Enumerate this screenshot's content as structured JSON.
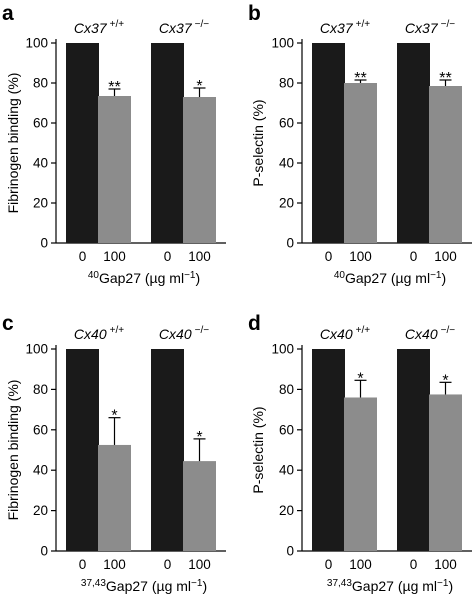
{
  "colors": {
    "control": "#1a1a1a",
    "treated": "#8c8c8c",
    "axis": "#000000"
  },
  "chart_data": [
    {
      "panel": "a",
      "type": "bar",
      "ylabel": "Fibrinogen binding (%)",
      "xlabel_prefix": "40",
      "xlabel_main": "Gap27 (µg ml",
      "xlabel_exp": "−1",
      "xlabel_close": ")",
      "ylim": [
        0,
        100
      ],
      "yticks": [
        0,
        20,
        40,
        60,
        80,
        100
      ],
      "groups": [
        {
          "genotype": "Cx37",
          "genotype_sup": "+/+",
          "categories": [
            "0",
            "100"
          ],
          "values": [
            100,
            73.5
          ],
          "errors": [
            0,
            3.5
          ],
          "significance": [
            "",
            "**"
          ]
        },
        {
          "genotype": "Cx37",
          "genotype_sup": "−/−",
          "categories": [
            "0",
            "100"
          ],
          "values": [
            100,
            73
          ],
          "errors": [
            0,
            4.5
          ],
          "significance": [
            "",
            "*"
          ]
        }
      ]
    },
    {
      "panel": "b",
      "type": "bar",
      "ylabel": "P-selectin (%)",
      "xlabel_prefix": "40",
      "xlabel_main": "Gap27 (µg ml",
      "xlabel_exp": "−1",
      "xlabel_close": ")",
      "ylim": [
        0,
        100
      ],
      "yticks": [
        0,
        20,
        40,
        60,
        80,
        100
      ],
      "groups": [
        {
          "genotype": "Cx37",
          "genotype_sup": "+/+",
          "categories": [
            "0",
            "100"
          ],
          "values": [
            100,
            80
          ],
          "errors": [
            0,
            1.5
          ],
          "significance": [
            "",
            "**"
          ]
        },
        {
          "genotype": "Cx37",
          "genotype_sup": "−/−",
          "categories": [
            "0",
            "100"
          ],
          "values": [
            100,
            78.5
          ],
          "errors": [
            0,
            3
          ],
          "significance": [
            "",
            "**"
          ]
        }
      ]
    },
    {
      "panel": "c",
      "type": "bar",
      "ylabel": "Fibrinogen binding (%)",
      "xlabel_prefix": "37,43",
      "xlabel_main": "Gap27 (µg ml",
      "xlabel_exp": "−1",
      "xlabel_close": ")",
      "ylim": [
        0,
        100
      ],
      "yticks": [
        0,
        20,
        40,
        60,
        80,
        100
      ],
      "groups": [
        {
          "genotype": "Cx40",
          "genotype_sup": "+/+",
          "categories": [
            "0",
            "100"
          ],
          "values": [
            100,
            52.5
          ],
          "errors": [
            0,
            13.5
          ],
          "significance": [
            "",
            "*"
          ]
        },
        {
          "genotype": "Cx40",
          "genotype_sup": "−/−",
          "categories": [
            "0",
            "100"
          ],
          "values": [
            100,
            44.5
          ],
          "errors": [
            0,
            11
          ],
          "significance": [
            "",
            "*"
          ]
        }
      ]
    },
    {
      "panel": "d",
      "type": "bar",
      "ylabel": "P-selectin (%)",
      "xlabel_prefix": "37,43",
      "xlabel_main": "Gap27 (µg ml",
      "xlabel_exp": "−1",
      "xlabel_close": ")",
      "ylim": [
        0,
        100
      ],
      "yticks": [
        0,
        20,
        40,
        60,
        80,
        100
      ],
      "groups": [
        {
          "genotype": "Cx40",
          "genotype_sup": "+/+",
          "categories": [
            "0",
            "100"
          ],
          "values": [
            100,
            76
          ],
          "errors": [
            0,
            8.5
          ],
          "significance": [
            "",
            "*"
          ]
        },
        {
          "genotype": "Cx40",
          "genotype_sup": "−/−",
          "categories": [
            "0",
            "100"
          ],
          "values": [
            100,
            77.5
          ],
          "errors": [
            0,
            6
          ],
          "significance": [
            "",
            "*"
          ]
        }
      ]
    }
  ]
}
